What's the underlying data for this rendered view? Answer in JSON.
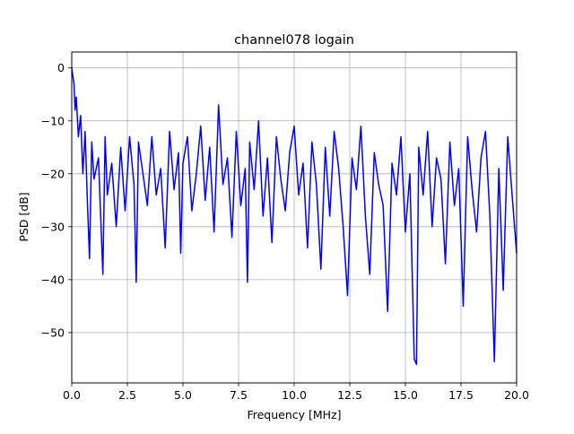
{
  "chart_data": {
    "type": "line",
    "title": "channel078 logain",
    "xlabel": "Frequency [MHz]",
    "ylabel": "PSD [dB]",
    "xlim": [
      0,
      20
    ],
    "ylim": [
      -59.5,
      3
    ],
    "grid": true,
    "line_color": "#0000ff",
    "x_ticks": [
      {
        "value": 0,
        "label": "0.0"
      },
      {
        "value": 2.5,
        "label": "2.5"
      },
      {
        "value": 5,
        "label": "5.0"
      },
      {
        "value": 7.5,
        "label": "7.5"
      },
      {
        "value": 10,
        "label": "10.0"
      },
      {
        "value": 12.5,
        "label": "12.5"
      },
      {
        "value": 15,
        "label": "15.0"
      },
      {
        "value": 17.5,
        "label": "17.5"
      },
      {
        "value": 20,
        "label": "20.0"
      }
    ],
    "y_ticks": [
      {
        "value": 0,
        "label": "0"
      },
      {
        "value": -10,
        "label": "−10"
      },
      {
        "value": -20,
        "label": "−20"
      },
      {
        "value": -30,
        "label": "−30"
      },
      {
        "value": -40,
        "label": "−40"
      },
      {
        "value": -50,
        "label": "−50"
      }
    ],
    "series": [
      {
        "name": "",
        "x": [
          0.0,
          0.05,
          0.1,
          0.15,
          0.2,
          0.3,
          0.4,
          0.5,
          0.6,
          0.7,
          0.8,
          0.9,
          1.0,
          1.2,
          1.4,
          1.5,
          1.6,
          1.8,
          2.0,
          2.2,
          2.4,
          2.6,
          2.8,
          2.9,
          3.0,
          3.2,
          3.4,
          3.6,
          3.8,
          4.0,
          4.2,
          4.4,
          4.6,
          4.8,
          4.9,
          5.0,
          5.2,
          5.4,
          5.6,
          5.8,
          6.0,
          6.2,
          6.4,
          6.6,
          6.8,
          7.0,
          7.2,
          7.4,
          7.6,
          7.8,
          7.9,
          8.0,
          8.2,
          8.4,
          8.6,
          8.8,
          9.0,
          9.2,
          9.4,
          9.6,
          9.8,
          10.0,
          10.2,
          10.4,
          10.6,
          10.8,
          11.0,
          11.2,
          11.4,
          11.6,
          11.8,
          12.0,
          12.2,
          12.4,
          12.6,
          12.8,
          13.0,
          13.2,
          13.4,
          13.6,
          13.8,
          14.0,
          14.2,
          14.4,
          14.6,
          14.8,
          15.0,
          15.2,
          15.4,
          15.5,
          15.6,
          15.8,
          16.0,
          16.2,
          16.4,
          16.6,
          16.8,
          17.0,
          17.2,
          17.4,
          17.6,
          17.8,
          18.0,
          18.2,
          18.4,
          18.6,
          18.8,
          19.0,
          19.2,
          19.4,
          19.6,
          19.8,
          20.0
        ],
        "y": [
          0.0,
          -1.5,
          -3.0,
          -8.0,
          -5.5,
          -13.0,
          -9.0,
          -20.0,
          -12.0,
          -25.0,
          -36.0,
          -14.0,
          -21.0,
          -17.0,
          -39.0,
          -13.0,
          -24.0,
          -18.0,
          -30.0,
          -15.0,
          -27.0,
          -13.0,
          -22.0,
          -40.5,
          -14.0,
          -20.0,
          -26.0,
          -13.0,
          -24.0,
          -19.0,
          -34.0,
          -12.0,
          -23.0,
          -16.0,
          -35.0,
          -18.0,
          -13.0,
          -27.0,
          -20.0,
          -11.0,
          -25.0,
          -15.0,
          -31.0,
          -7.0,
          -22.0,
          -17.0,
          -32.0,
          -12.0,
          -26.0,
          -19.0,
          -40.5,
          -14.0,
          -23.0,
          -10.0,
          -28.0,
          -17.0,
          -33.0,
          -13.0,
          -21.0,
          -27.0,
          -16.0,
          -11.0,
          -24.0,
          -18.0,
          -34.0,
          -14.0,
          -22.0,
          -38.0,
          -15.0,
          -28.0,
          -12.0,
          -19.0,
          -30.0,
          -43.0,
          -17.0,
          -23.0,
          -11.0,
          -28.0,
          -39.0,
          -16.0,
          -22.0,
          -26.0,
          -46.0,
          -18.0,
          -24.0,
          -13.0,
          -31.0,
          -20.0,
          -55.0,
          -56.0,
          -15.0,
          -24.0,
          -12.0,
          -30.0,
          -17.0,
          -21.0,
          -37.0,
          -14.0,
          -26.0,
          -19.0,
          -45.0,
          -13.0,
          -23.0,
          -31.0,
          -17.0,
          -12.0,
          -28.0,
          -55.5,
          -19.0,
          -42.0,
          -13.0,
          -24.0,
          -35.0
        ]
      }
    ]
  }
}
